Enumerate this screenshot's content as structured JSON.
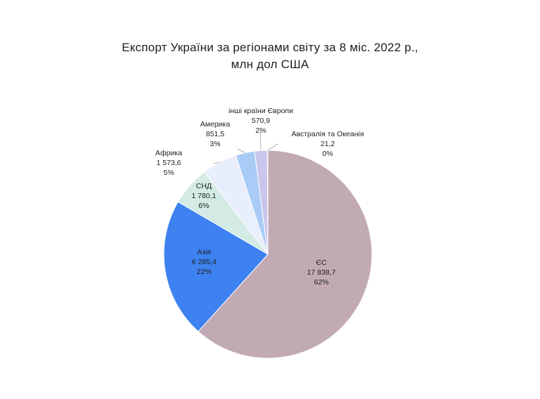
{
  "chart_data": {
    "type": "pie",
    "title_lines": [
      "Експорт України за регіонами світу за 8 міс. 2022 р.,",
      "млн дол США"
    ],
    "unit": "млн дол США",
    "slices": [
      {
        "name": "ЄС",
        "value": 17838.7,
        "value_label": "17 838,7",
        "percent_label": "62%",
        "color": "#c2aab5"
      },
      {
        "name": "Азія",
        "value": 6285.4,
        "value_label": "6 285,4",
        "percent_label": "22%",
        "color": "#3d82f0"
      },
      {
        "name": "СНД",
        "value": 1780.1,
        "value_label": "1 780,1",
        "percent_label": "6%",
        "color": "#d3ebe4"
      },
      {
        "name": "Африка",
        "value": 1573.6,
        "value_label": "1 573,6",
        "percent_label": "5%",
        "color": "#e8eefb"
      },
      {
        "name": "Америка",
        "value": 851.5,
        "value_label": "851,5",
        "percent_label": "3%",
        "color": "#a9cbf6"
      },
      {
        "name": "інші країни Європи",
        "value": 570.9,
        "value_label": "570,9",
        "percent_label": "2%",
        "color": "#c9c6ec"
      },
      {
        "name": "Австралія та Океанія",
        "value": 21.2,
        "value_label": "21,2",
        "percent_label": "0%",
        "color": "#b7b2bd"
      }
    ]
  }
}
